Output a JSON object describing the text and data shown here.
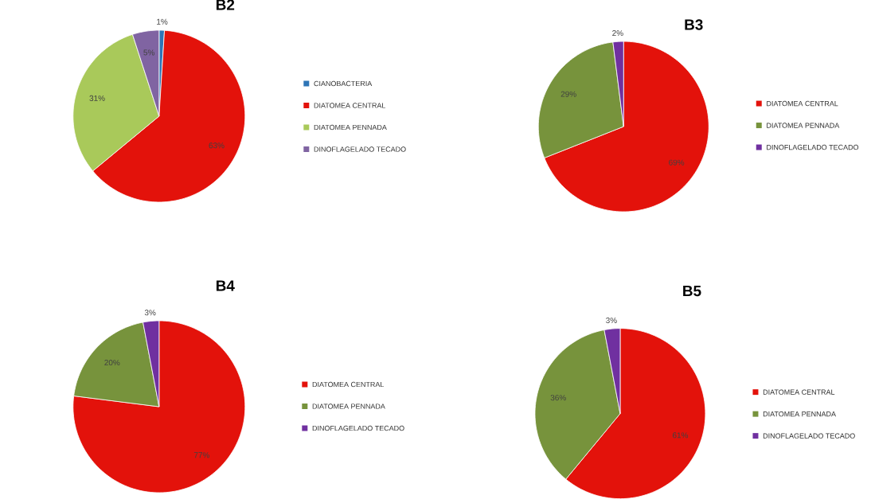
{
  "chart_data": [
    {
      "type": "pie",
      "title": "B2",
      "categories": [
        "CIANOBACTERIA",
        "DIATOMEA CENTRAL",
        "DIATOMEA PENNADA",
        "DINOFLAGELADO TECADO"
      ],
      "values": [
        1,
        63,
        31,
        5
      ],
      "colors": [
        "#2e75b6",
        "#e3120b",
        "#a9c95a",
        "#8064a2"
      ],
      "value_labels": [
        "1%",
        "63%",
        "31%",
        "5%"
      ],
      "legend": "right"
    },
    {
      "type": "pie",
      "title": "B3",
      "categories": [
        "DIATOMEA CENTRAL",
        "DIATOMEA PENNADA",
        "DINOFLAGELADO TECADO"
      ],
      "values": [
        69,
        29,
        2
      ],
      "colors": [
        "#e3120b",
        "#77933c",
        "#7030a0"
      ],
      "value_labels": [
        "69%",
        "29%",
        "2%"
      ],
      "legend": "right"
    },
    {
      "type": "pie",
      "title": "B4",
      "categories": [
        "DIATOMEA CENTRAL",
        "DIATOMEA PENNADA",
        "DINOFLAGELADO TECADO"
      ],
      "values": [
        77,
        20,
        3
      ],
      "colors": [
        "#e3120b",
        "#77933c",
        "#7030a0"
      ],
      "value_labels": [
        "77%",
        "20%",
        "3%"
      ],
      "legend": "right"
    },
    {
      "type": "pie",
      "title": "B5",
      "categories": [
        "DIATOMEA CENTRAL",
        "DIATOMEA PENNADA",
        "DINOFLAGELADO TECADO"
      ],
      "values": [
        61,
        36,
        3
      ],
      "colors": [
        "#e3120b",
        "#77933c",
        "#7030a0"
      ],
      "value_labels": [
        "61%",
        "36%",
        "3%"
      ],
      "legend": "right"
    }
  ]
}
